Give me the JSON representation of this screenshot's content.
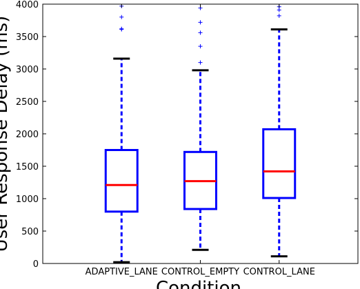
{
  "chart_data": {
    "type": "boxplot",
    "title": "",
    "xlabel": "Condition",
    "ylabel": "User Response Delay (ms)",
    "ylim": [
      0,
      4000
    ],
    "yticks": [
      0,
      500,
      1000,
      1500,
      2000,
      2500,
      3000,
      3500,
      4000
    ],
    "categories": [
      "ADAPTIVE_LANE",
      "CONTROL_EMPTY",
      "CONTROL_LANE"
    ],
    "boxes": [
      {
        "category": "ADAPTIVE_LANE",
        "whisker_low": 20,
        "q1": 800,
        "median": 1210,
        "q3": 1750,
        "whisker_high": 3160,
        "outliers": [
          3610,
          3620,
          3800,
          3970
        ]
      },
      {
        "category": "CONTROL_EMPTY",
        "whisker_low": 210,
        "q1": 840,
        "median": 1270,
        "q3": 1720,
        "whisker_high": 2980,
        "outliers": [
          3100,
          3350,
          3560,
          3720,
          3940
        ]
      },
      {
        "category": "CONTROL_LANE",
        "whisker_low": 110,
        "q1": 1010,
        "median": 1420,
        "q3": 2070,
        "whisker_high": 3610,
        "outliers": [
          3820,
          3910,
          3960
        ]
      }
    ],
    "colors": {
      "box": "#0000ff",
      "median": "#ff0000",
      "whisker": "#0000ff",
      "cap": "#000000",
      "outlier": "#0000ff"
    },
    "grid": false,
    "legend": "none"
  }
}
